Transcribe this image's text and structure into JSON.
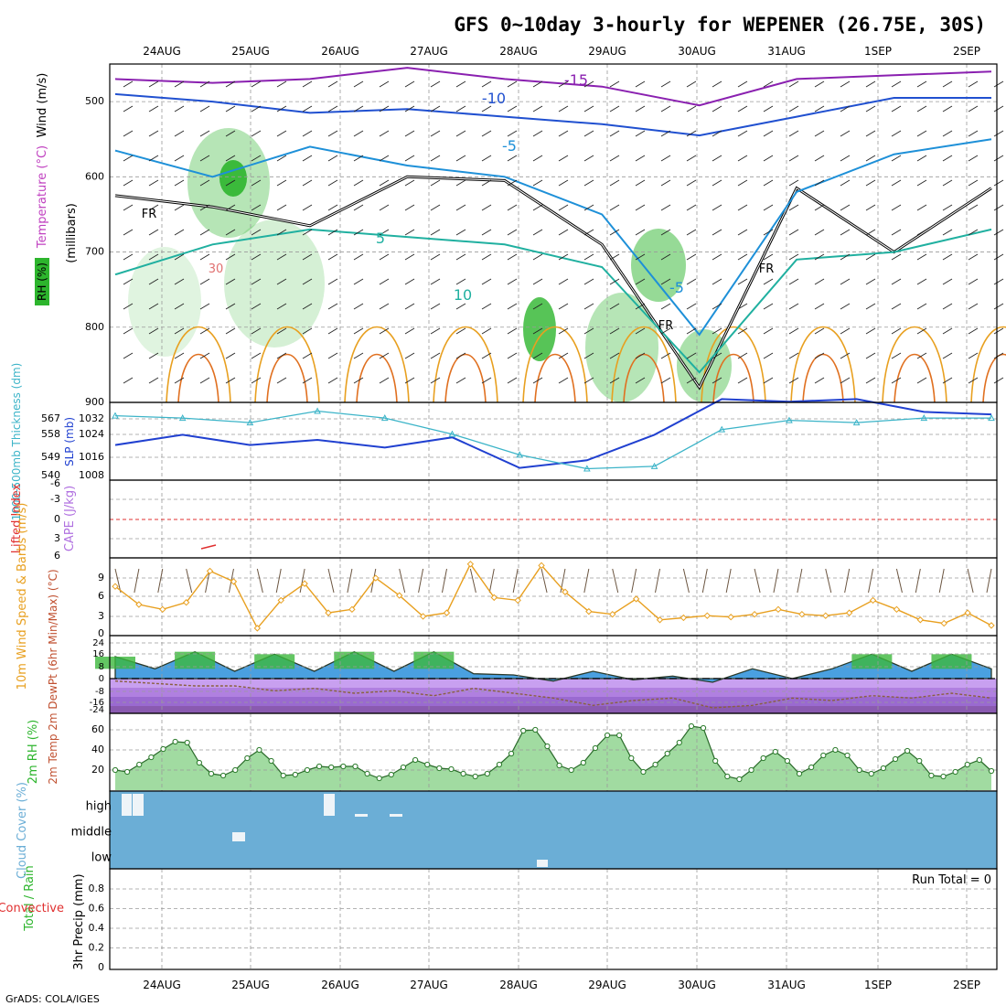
{
  "title": "GFS 0~10day 3-hourly for WEPENER (26.75E, 30S)",
  "footer": "GrADS: COLA/IGES",
  "colors": {
    "frame": "#000000",
    "grid": "#9a9a9a",
    "rh_green": "#2db52d",
    "teal": "#3cb4c8",
    "slp_blue": "#2040d0",
    "orange": "#e8a020",
    "red": "#e03030",
    "purple": "#b070e0",
    "cloud_blue": "#6baed6",
    "temp_dark_green": "#2a7a2a",
    "dewpt_brown": "#8a6040"
  },
  "chart_data": [
    {
      "id": "upper-air",
      "type": "line",
      "x_ticks": [
        "24AUG",
        "25AUG",
        "26AUG",
        "27AUG",
        "28AUG",
        "29AUG",
        "30AUG",
        "31AUG",
        "1SEP",
        "2SEP"
      ],
      "ylabel_parts": [
        "RH (%)",
        "Temperature (°C)",
        "Wind (m/s)",
        "(millibars)"
      ],
      "y_ticks": [
        500,
        600,
        700,
        800,
        900
      ],
      "ylim": [
        900,
        450
      ],
      "contour_labels": [
        "-15",
        "-10",
        "-5",
        "-5",
        "5",
        "10",
        "30",
        "FR",
        "FR",
        "FR"
      ],
      "series": [
        {
          "name": "FR",
          "values": [
            625,
            640,
            665,
            600,
            605,
            690,
            880,
            615,
            700,
            615
          ]
        },
        {
          "name": "-5",
          "values": [
            565,
            600,
            560,
            585,
            600,
            650,
            810,
            620,
            570,
            550
          ]
        },
        {
          "name": "5",
          "values": [
            730,
            690,
            670,
            680,
            690,
            720,
            860,
            710,
            700,
            670
          ]
        },
        {
          "name": "-15",
          "values": [
            470,
            475,
            470,
            455,
            470,
            480,
            505,
            470,
            465,
            460
          ]
        },
        {
          "name": "-10",
          "values": [
            490,
            500,
            515,
            510,
            520,
            530,
            545,
            520,
            495,
            495
          ]
        }
      ]
    },
    {
      "id": "thickness-slp",
      "type": "line",
      "ylabel_left": "1000-500mb Thickness (dm)",
      "ylabel_right": "SLP (mb)",
      "y_ticks_left": [
        "567",
        "558",
        "549",
        "540"
      ],
      "y_ticks_right": [
        "1032",
        "1024",
        "1016",
        "1008"
      ],
      "series": [
        {
          "name": "SLP",
          "values": [
            1018,
            1022,
            1018,
            1020,
            1017,
            1021,
            1009,
            1012,
            1022,
            1036,
            1035,
            1036,
            1031,
            1030
          ]
        },
        {
          "name": "Thickness",
          "values": [
            564,
            563,
            561,
            566,
            563,
            556,
            547,
            541,
            542,
            558,
            562,
            561,
            563,
            563
          ]
        }
      ]
    },
    {
      "id": "lifted-cape",
      "type": "line",
      "ylabel_left": "Lifted Index",
      "ylabel_right": "CAPE (J/kg)",
      "y_ticks": [
        "-6",
        "-3",
        "0",
        "3",
        "6"
      ],
      "series": [
        {
          "name": "Lifted Index",
          "values": [
            5.2,
            4.2
          ]
        }
      ]
    },
    {
      "id": "wind10m",
      "type": "line",
      "ylabel": "10m Wind Speed & Barbs (m/s)",
      "y_ticks": [
        "9",
        "6",
        "3",
        "0"
      ],
      "ylim": [
        0,
        10.5
      ],
      "series": [
        {
          "name": "10m Wind",
          "values": [
            6.8,
            4.2,
            3.5,
            4.5,
            9.0,
            7.5,
            0.8,
            4.8,
            7.2,
            3.0,
            3.5,
            8.0,
            5.5,
            2.5,
            3.0,
            10.0,
            5.2,
            4.8,
            9.8,
            6.0,
            3.2,
            2.8,
            5.0,
            2.0,
            2.3,
            2.6,
            2.4,
            2.8,
            3.5,
            2.8,
            2.6,
            3.0,
            4.8,
            3.5,
            2.0,
            1.5,
            3.0,
            1.2
          ]
        }
      ]
    },
    {
      "id": "temp2m",
      "type": "area",
      "ylabel": "2m Temp 2m DewPt (6hr Min/Max) (°C)",
      "y_ticks": [
        "24",
        "16",
        "8",
        "0",
        "-8",
        "-16",
        "-24"
      ],
      "ylim": [
        -30,
        30
      ],
      "series": [
        {
          "name": "Temp",
          "values": [
            18,
            8,
            22,
            6,
            20,
            6,
            22,
            6,
            22,
            4,
            3,
            -2,
            6,
            -1,
            2,
            -3,
            8,
            0,
            8,
            20,
            6,
            20,
            8
          ]
        },
        {
          "name": "DewPt",
          "values": [
            -2,
            -4,
            -6,
            -6,
            -10,
            -8,
            -12,
            -10,
            -14,
            -8,
            -12,
            -16,
            -22,
            -18,
            -16,
            -24,
            -22,
            -16,
            -18,
            -14,
            -16,
            -12,
            -16
          ]
        }
      ]
    },
    {
      "id": "rh2m",
      "type": "area",
      "ylabel": "2m RH (%)",
      "y_ticks": [
        "60",
        "40",
        "20"
      ],
      "ylim": [
        0,
        80
      ],
      "series": [
        {
          "name": "2m RH",
          "values": [
            22,
            20,
            28,
            36,
            45,
            53,
            52,
            30,
            18,
            16,
            22,
            35,
            44,
            32,
            16,
            17,
            22,
            26,
            25,
            26,
            26,
            18,
            13,
            17,
            25,
            33,
            28,
            24,
            23,
            18,
            15,
            18,
            28,
            40,
            65,
            66,
            48,
            27,
            22,
            30,
            46,
            60,
            60,
            35,
            20,
            28,
            40,
            52,
            70,
            68,
            32,
            15,
            12,
            22,
            35,
            42,
            32,
            18,
            25,
            38,
            44,
            38,
            22,
            18,
            24,
            34,
            43,
            32,
            16,
            15,
            20,
            28,
            33,
            21
          ]
        }
      ]
    },
    {
      "id": "cloud",
      "type": "heatmap",
      "ylabel": "Cloud Cover (%)",
      "y_ticks": [
        "high",
        "middle",
        "low"
      ],
      "series": [
        {
          "name": "Cloud Cover",
          "values": [
            0
          ]
        }
      ]
    },
    {
      "id": "precip",
      "type": "bar",
      "ylabel_parts": [
        "Total / Rain",
        "Convective",
        "3hr Precip (mm)"
      ],
      "y_ticks": [
        "0.8",
        "0.6",
        "0.4",
        "0.2",
        "0"
      ],
      "ylim": [
        0,
        1
      ],
      "annotation": "Run Total = 0",
      "series": [
        {
          "name": "3hr Precip",
          "values": []
        }
      ]
    }
  ]
}
